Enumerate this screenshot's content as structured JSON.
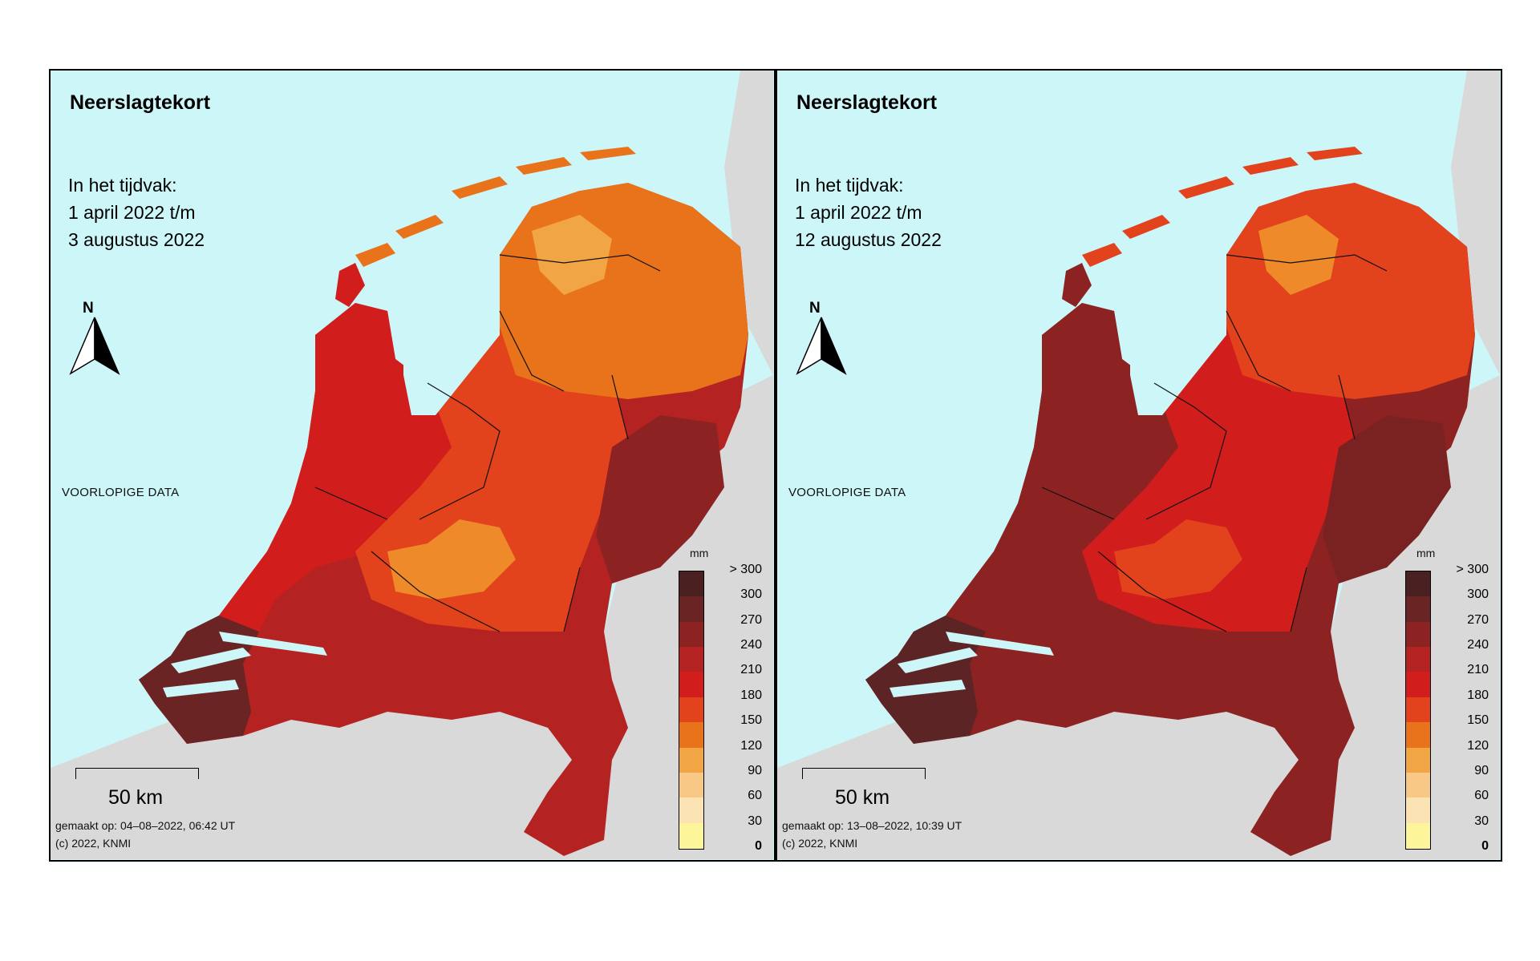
{
  "panels": [
    {
      "title": "Neerslagtekort",
      "period": [
        "In het tijdvak:",
        "1 april 2022 t/m",
        "3 augustus 2022"
      ],
      "preliminary": "VOORLOPIGE DATA",
      "north": "N",
      "scale": "50 km",
      "made": "gemaakt op: 04–08–2022, 06:42 UT",
      "copyright": "(c) 2022, KNMI",
      "fills": {
        "north": "#e9731a",
        "north_light": "#f2a545",
        "center": "#e2421c",
        "west": "#d21d1d",
        "east": "#8c2222",
        "south": "#b52222",
        "southwest": "#6b2424",
        "utrecht": "#ee8a2a"
      }
    },
    {
      "title": "Neerslagtekort",
      "period": [
        "In het tijdvak:",
        "1 april 2022 t/m",
        "12 augustus 2022"
      ],
      "preliminary": "VOORLOPIGE DATA",
      "north": "N",
      "scale": "50 km",
      "made": "gemaakt op: 13–08–2022, 10:39 UT",
      "copyright": "(c) 2022, KNMI",
      "fills": {
        "north": "#e2421c",
        "north_light": "#ee8a2a",
        "center": "#d21d1d",
        "west": "#8c2222",
        "east": "#7a2222",
        "south": "#8c2222",
        "southwest": "#5c2424",
        "utrecht": "#e2421c"
      }
    }
  ],
  "legend": {
    "unit": "mm",
    "labels": [
      "> 300",
      "300",
      "270",
      "240",
      "210",
      "180",
      "150",
      "120",
      "90",
      "60",
      "30",
      "0"
    ],
    "colors": [
      "#4a2020",
      "#6b2424",
      "#8c2222",
      "#b52222",
      "#d21d1d",
      "#e2421c",
      "#e9731a",
      "#f2a545",
      "#f7c886",
      "#fbe3b3",
      "#fdf59a",
      "#fbf05a"
    ]
  },
  "colors": {
    "sea": "#cdf6f8",
    "land_outside": "#d9d9d9"
  }
}
